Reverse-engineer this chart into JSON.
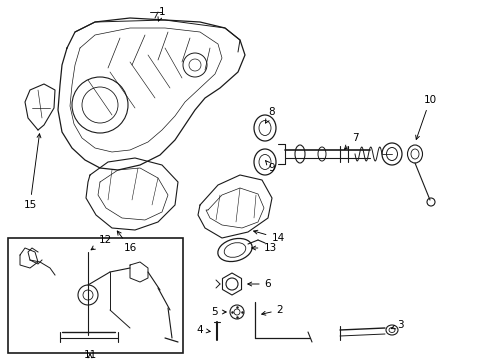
{
  "bg_color": "#ffffff",
  "line_color": "#1a1a1a",
  "figsize": [
    4.89,
    3.6
  ],
  "dpi": 100,
  "lw": 0.7,
  "font_size": 7.5
}
